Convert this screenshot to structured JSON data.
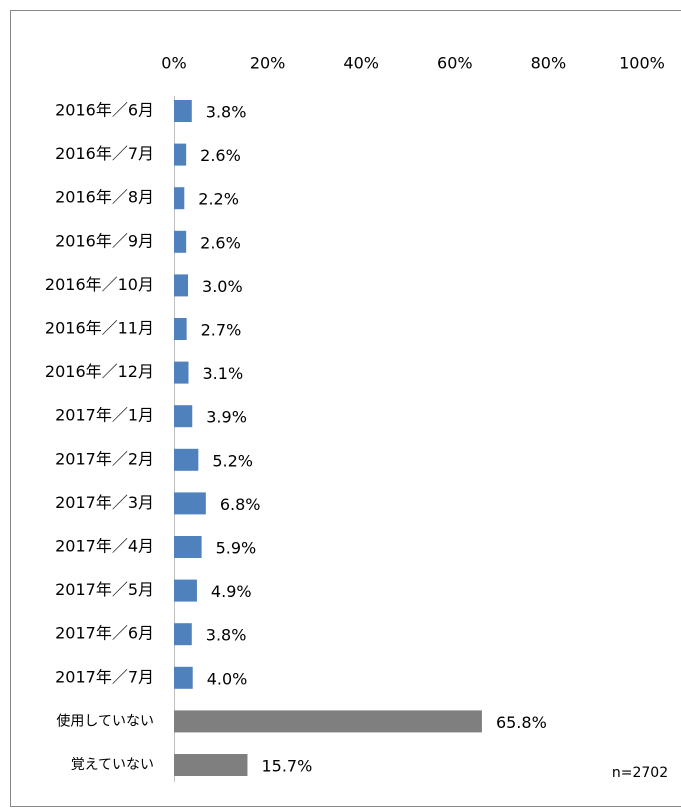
{
  "chart_data": {
    "type": "barh",
    "categories": [
      "2016年／6月",
      "2016年／7月",
      "2016年／8月",
      "2016年／9月",
      "2016年／10月",
      "2016年／11月",
      "2016年／12月",
      "2017年／1月",
      "2017年／2月",
      "2017年／3月",
      "2017年／4月",
      "2017年／5月",
      "2017年／6月",
      "2017年／7月",
      "使用していない",
      "覚えていない"
    ],
    "values": [
      3.8,
      2.6,
      2.2,
      2.6,
      3.0,
      2.7,
      3.1,
      3.9,
      5.2,
      6.8,
      5.9,
      4.9,
      3.8,
      4.0,
      65.8,
      15.7
    ],
    "value_labels": [
      "3.8%",
      "2.6%",
      "2.2%",
      "2.6%",
      "3.0%",
      "2.7%",
      "3.1%",
      "3.9%",
      "5.2%",
      "6.8%",
      "5.9%",
      "4.9%",
      "3.8%",
      "4.0%",
      "65.8%",
      "15.7%"
    ],
    "colors": [
      "#4f81bd",
      "#4f81bd",
      "#4f81bd",
      "#4f81bd",
      "#4f81bd",
      "#4f81bd",
      "#4f81bd",
      "#4f81bd",
      "#4f81bd",
      "#4f81bd",
      "#4f81bd",
      "#4f81bd",
      "#4f81bd",
      "#4f81bd",
      "#7f7f7f",
      "#7f7f7f"
    ],
    "xlim": [
      0,
      100
    ],
    "xticks": [
      {
        "value": 0,
        "label": "0%"
      },
      {
        "value": 20,
        "label": "20%"
      },
      {
        "value": 40,
        "label": "40%"
      },
      {
        "value": 60,
        "label": "60%"
      },
      {
        "value": 80,
        "label": "80%"
      },
      {
        "value": 100,
        "label": "100%"
      }
    ],
    "annotation": "n=2702"
  }
}
